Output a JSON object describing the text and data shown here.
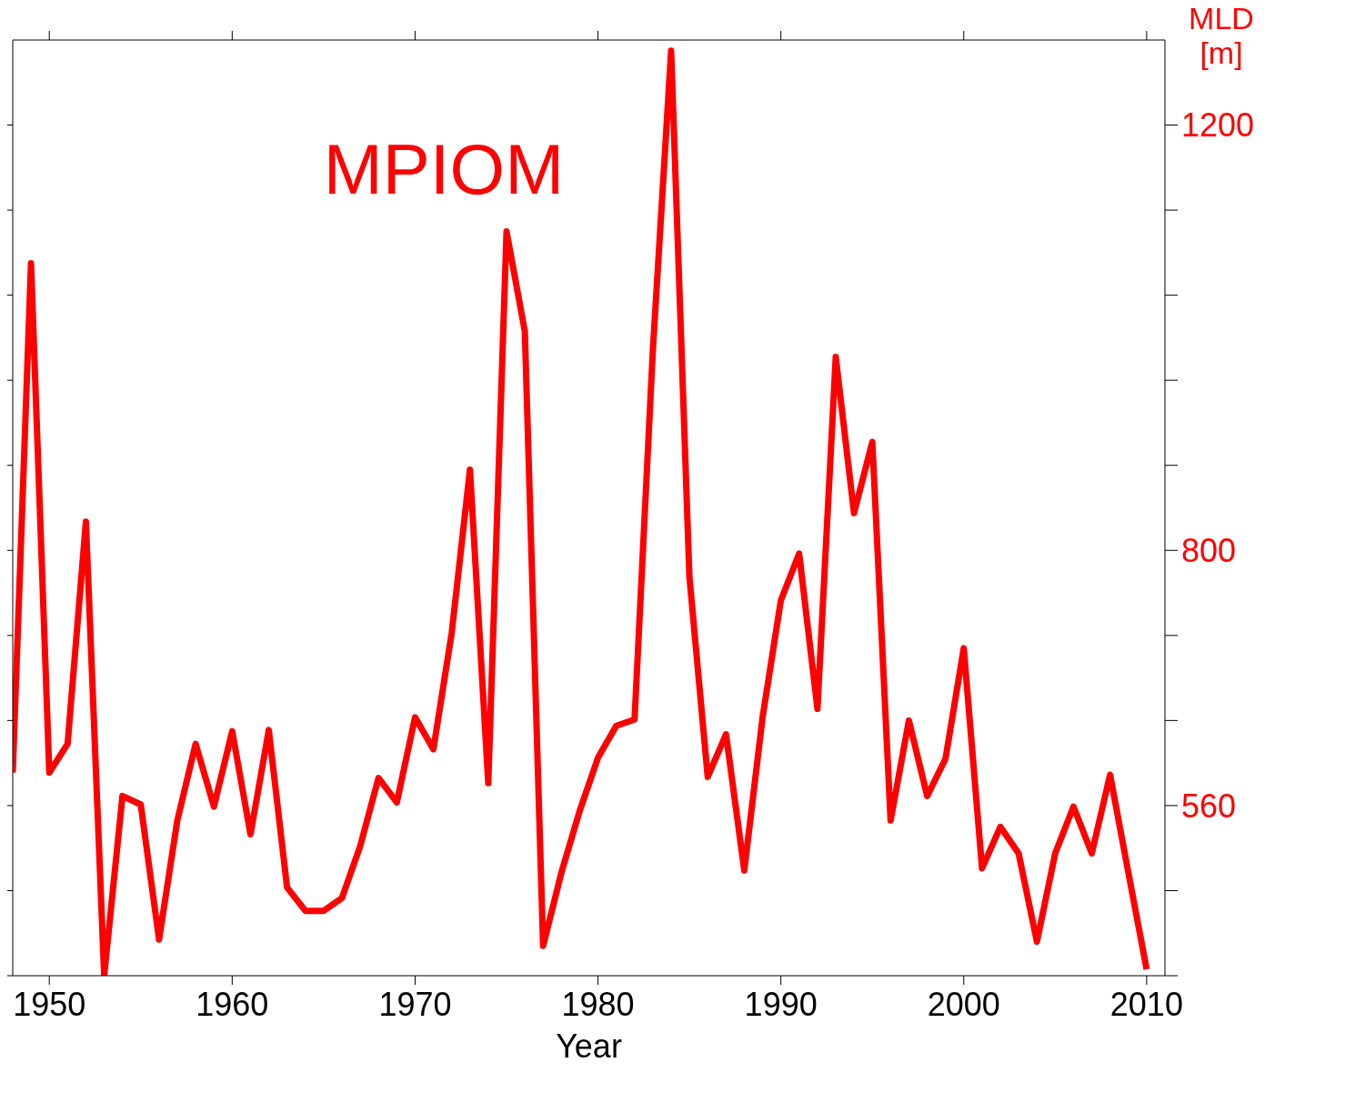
{
  "chart_data": {
    "type": "line",
    "xlabel": "Year",
    "ylabel": "MLD [m]",
    "annotations": [
      "MPIOM"
    ],
    "x": [
      1948,
      1949,
      1950,
      1951,
      1952,
      1953,
      1954,
      1955,
      1956,
      1957,
      1958,
      1959,
      1960,
      1961,
      1962,
      1963,
      1964,
      1965,
      1966,
      1967,
      1968,
      1969,
      1970,
      1971,
      1972,
      1973,
      1974,
      1975,
      1976,
      1977,
      1978,
      1979,
      1980,
      1981,
      1982,
      1983,
      1984,
      1985,
      1986,
      1987,
      1988,
      1989,
      1990,
      1991,
      1992,
      1993,
      1994,
      1995,
      1996,
      1997,
      1998,
      1999,
      2000,
      2001,
      2002,
      2003,
      2004,
      2005,
      2006,
      2007,
      2008,
      2009,
      2010
    ],
    "series": [
      {
        "color": "#ff0000",
        "values": [
          591,
          1070,
          591,
          618,
          827,
          400,
          569,
          561,
          434,
          546,
          618,
          559,
          630,
          533,
          631,
          483,
          461,
          461,
          473,
          522,
          586,
          563,
          643,
          613,
          722,
          876,
          581,
          1100,
          1006,
          428,
          497,
          555,
          605,
          635,
          641,
          988,
          1270,
          775,
          587,
          627,
          499,
          643,
          753,
          797,
          651,
          982,
          835,
          902,
          546,
          640,
          569,
          604,
          708,
          501,
          540,
          515,
          432,
          515,
          559,
          515,
          589,
          497,
          406
        ]
      }
    ],
    "xlim": [
      1948,
      2011
    ],
    "xticks": [
      1950,
      1960,
      1970,
      1980,
      1990,
      2000,
      2010
    ],
    "ylim": [
      400,
      1280
    ],
    "yticks": [
      {
        "value": 400,
        "label": null
      },
      {
        "value": 480,
        "label": null
      },
      560,
      {
        "value": 640,
        "label": null
      },
      {
        "value": 720,
        "label": null
      },
      800,
      {
        "value": 880,
        "label": null
      },
      {
        "value": 960,
        "label": null
      },
      {
        "value": 1040,
        "label": null
      },
      {
        "value": 1120,
        "label": null
      },
      1200
    ],
    "grid": false,
    "marker": "none",
    "line_style": "solid"
  }
}
